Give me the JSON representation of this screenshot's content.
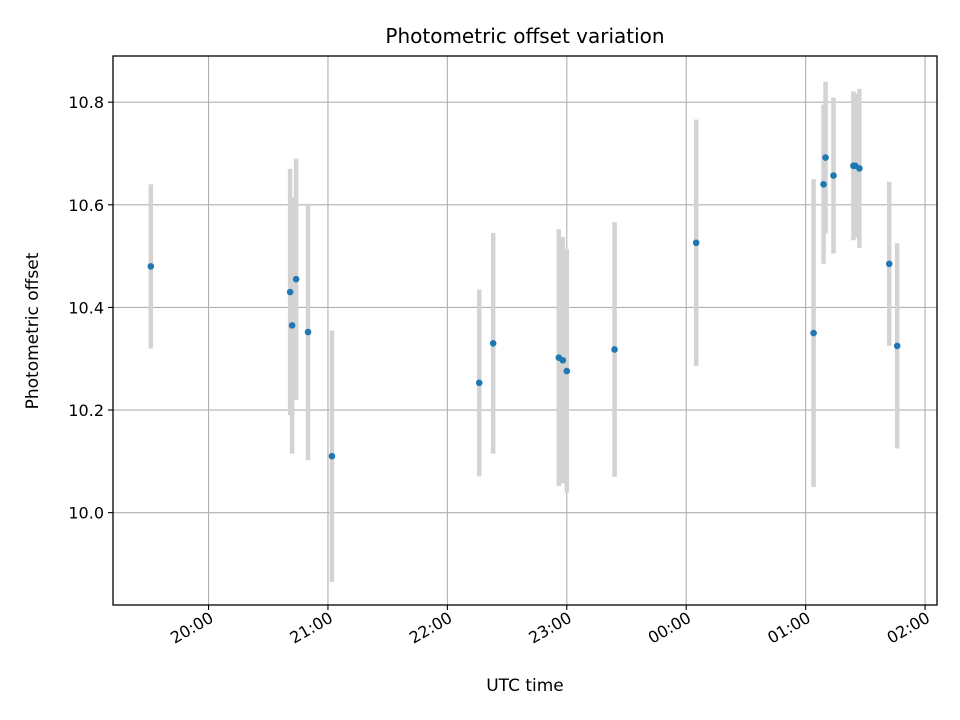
{
  "chart_data": {
    "type": "scatter",
    "title": "Photometric offset variation",
    "xlabel": "UTC time",
    "ylabel": "Photometric offset",
    "x_unit": "UTC time (HH:MM, crossing midnight)",
    "xlim": [
      "19:12",
      "02:06"
    ],
    "ylim": [
      9.82,
      10.89
    ],
    "x_ticks": [
      "20:00",
      "21:00",
      "22:00",
      "23:00",
      "00:00",
      "01:00",
      "02:00"
    ],
    "y_ticks": [
      10.0,
      10.2,
      10.4,
      10.6,
      10.8
    ],
    "y_tick_labels": [
      "10.0",
      "10.2",
      "10.4",
      "10.6",
      "10.8"
    ],
    "grid": true,
    "colors": {
      "point": "#1f77b4",
      "errorbar": "#d3d3d3",
      "grid": "#b0b0b0"
    },
    "points": [
      {
        "x": "19:31",
        "y": 10.48,
        "err": 0.16
      },
      {
        "x": "20:41",
        "y": 10.43,
        "err": 0.24
      },
      {
        "x": "20:42",
        "y": 10.365,
        "err": 0.25
      },
      {
        "x": "20:44",
        "y": 10.455,
        "err": 0.235
      },
      {
        "x": "20:50",
        "y": 10.352,
        "err": 0.25
      },
      {
        "x": "21:02",
        "y": 10.11,
        "err": 0.245
      },
      {
        "x": "22:16",
        "y": 10.253,
        "err": 0.182
      },
      {
        "x": "22:23",
        "y": 10.33,
        "err": 0.215
      },
      {
        "x": "22:56",
        "y": 10.302,
        "err": 0.25
      },
      {
        "x": "22:58",
        "y": 10.297,
        "err": 0.24
      },
      {
        "x": "23:00",
        "y": 10.276,
        "err": 0.237
      },
      {
        "x": "23:24",
        "y": 10.318,
        "err": 0.248
      },
      {
        "x": "00:05",
        "y": 10.526,
        "err": 0.24
      },
      {
        "x": "01:04",
        "y": 10.35,
        "err": 0.3
      },
      {
        "x": "01:09",
        "y": 10.64,
        "err": 0.155
      },
      {
        "x": "01:10",
        "y": 10.692,
        "err": 0.148
      },
      {
        "x": "01:14",
        "y": 10.657,
        "err": 0.152
      },
      {
        "x": "01:24",
        "y": 10.676,
        "err": 0.145
      },
      {
        "x": "01:25",
        "y": 10.676,
        "err": 0.14
      },
      {
        "x": "01:27",
        "y": 10.671,
        "err": 0.155
      },
      {
        "x": "01:42",
        "y": 10.485,
        "err": 0.16
      },
      {
        "x": "01:46",
        "y": 10.325,
        "err": 0.2
      }
    ]
  }
}
